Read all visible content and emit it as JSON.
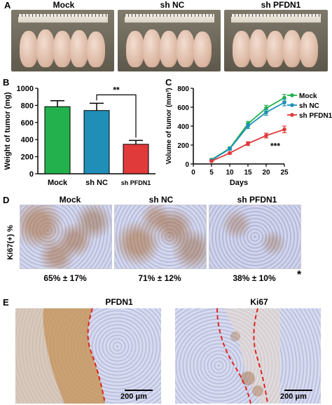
{
  "panel_labels": {
    "a": "A",
    "b": "B",
    "c": "C",
    "d": "D",
    "e": "E"
  },
  "panel_a": {
    "groups": [
      "Mock",
      "sh NC",
      "sh PFDN1"
    ]
  },
  "panel_d": {
    "groups": [
      "Mock",
      "sh NC",
      "sh PFDN1"
    ],
    "y_label": "Ki67(+) %",
    "percentages": [
      "65% ± 17%",
      "71% ± 12%",
      "38% ± 10%"
    ],
    "significance": "*"
  },
  "panel_e": {
    "titles": [
      "PFDN1",
      "Ki67"
    ],
    "scale_bar_label": "200 μm"
  },
  "colors": {
    "mock": "#22b14c",
    "sh_nc": "#1f8fb8",
    "sh_pfdn1": "#e03a3a",
    "boundary": "#e0241c"
  },
  "chart_data": [
    {
      "type": "bar",
      "ylabel": "Weight of tumor (mg)",
      "categories": [
        "Mock",
        "sh NC",
        "sh PFDN1"
      ],
      "values": [
        785,
        740,
        345
      ],
      "errors": [
        70,
        85,
        45
      ],
      "ylim": [
        0,
        1000
      ],
      "yticks": [
        0,
        200,
        400,
        600,
        800,
        1000
      ],
      "annotation": "**"
    },
    {
      "type": "line",
      "xlabel": "Days",
      "ylabel": "Volume of tumor (mm³)",
      "x": [
        5,
        10,
        15,
        20,
        25
      ],
      "xlim": [
        0,
        25
      ],
      "ylim": [
        0,
        800
      ],
      "yticks": [
        0,
        200,
        400,
        600,
        800
      ],
      "xticks": [
        0,
        5,
        10,
        15,
        20,
        25
      ],
      "series": [
        {
          "name": "Mock",
          "values": [
            45,
            165,
            425,
            590,
            700
          ],
          "errors": [
            8,
            15,
            25,
            30,
            35
          ]
        },
        {
          "name": "sh NC",
          "values": [
            40,
            160,
            400,
            545,
            650
          ],
          "errors": [
            8,
            15,
            25,
            30,
            35
          ]
        },
        {
          "name": "sh PFDN1",
          "values": [
            30,
            115,
            215,
            300,
            365
          ],
          "errors": [
            6,
            12,
            20,
            25,
            35
          ]
        }
      ],
      "legend": "top-right",
      "annotation": "***"
    }
  ]
}
